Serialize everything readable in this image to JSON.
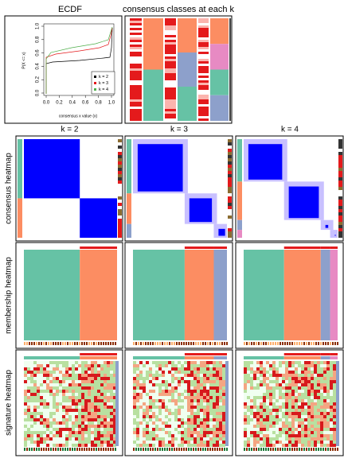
{
  "header": {
    "ecdf_title": "ECDF",
    "classes_title": "consensus classes at each k"
  },
  "ecdf": {
    "x_label": "consensus x value (x)",
    "y_label": "P(X <= x)",
    "x_ticks": [
      "0.0",
      "0.2",
      "0.4",
      "0.6",
      "0.8",
      "1.0"
    ],
    "y_ticks": [
      "0.0",
      "0.2",
      "0.4",
      "0.6",
      "0.8",
      "1.0"
    ],
    "legend": [
      "k = 2",
      "k = 3",
      "k = 4"
    ]
  },
  "columns": [
    "k = 2",
    "k = 3",
    "k = 4"
  ],
  "rows": [
    "consensus heatmap",
    "membership heatmap",
    "signature heatmap"
  ]
}
